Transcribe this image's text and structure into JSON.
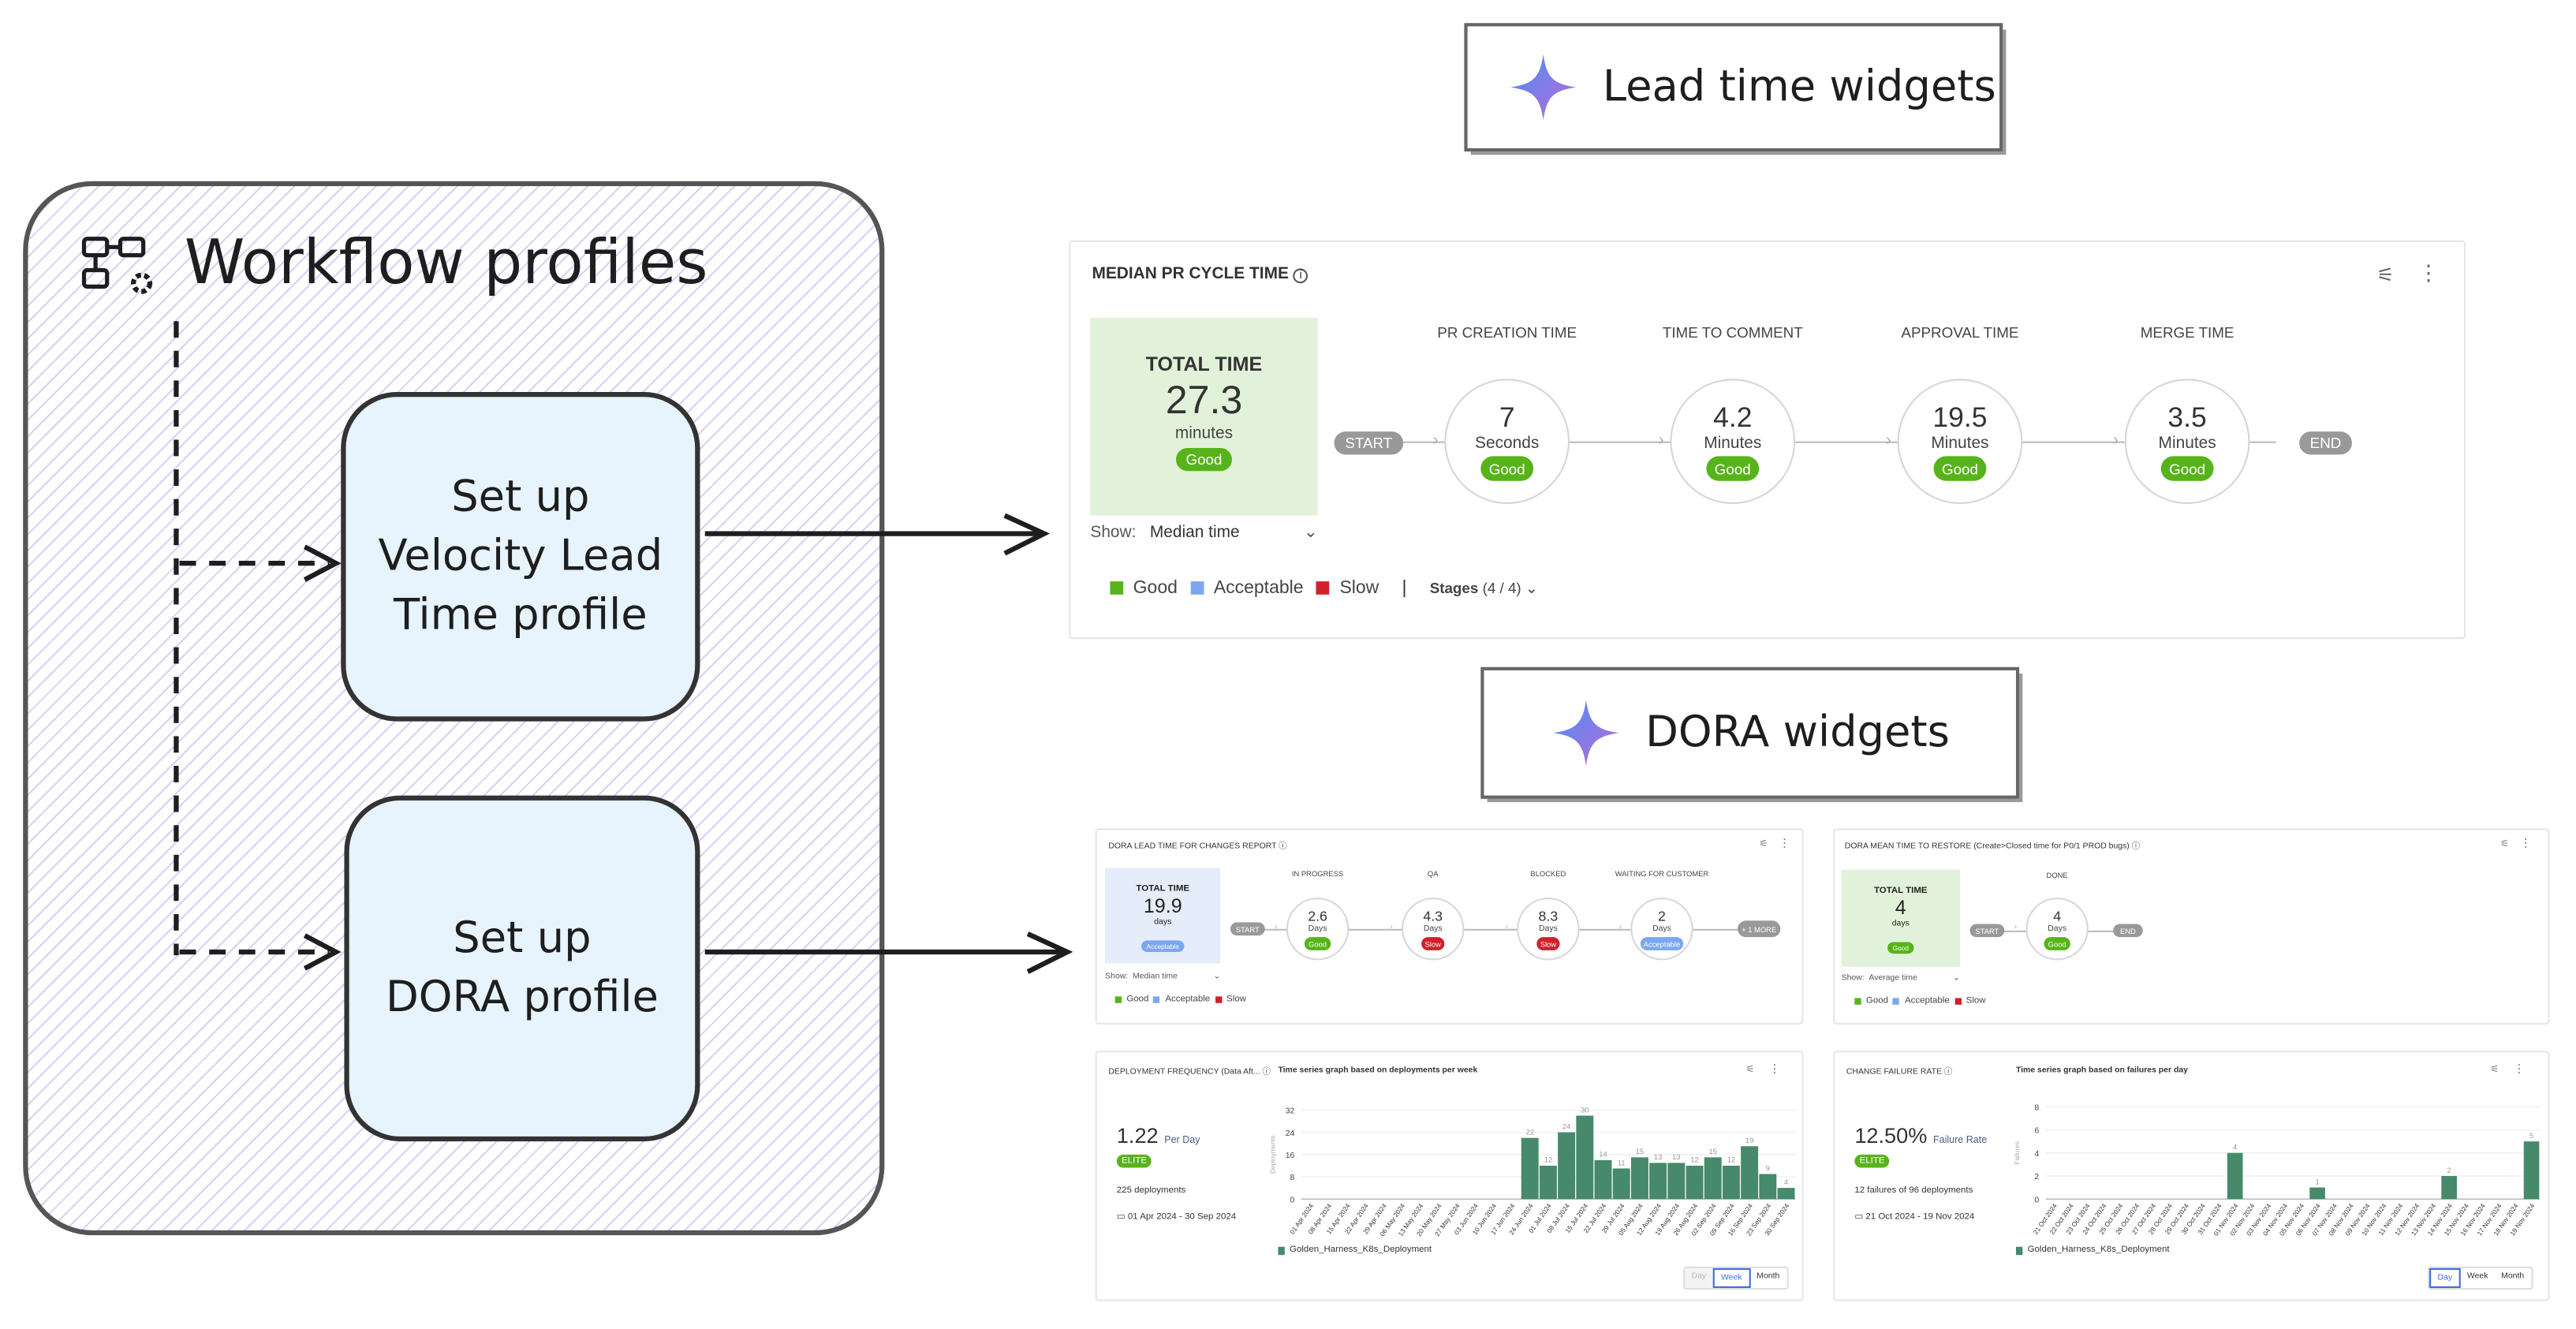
{
  "workflow": {
    "title": "Workflow profiles",
    "icon": "workflow-settings-icon",
    "boxes": [
      {
        "lines": [
          "Set up",
          "Velocity Lead",
          "Time profile"
        ]
      },
      {
        "lines": [
          "Set up",
          "DORA profile"
        ]
      }
    ]
  },
  "labels": {
    "lead": "Lead time widgets",
    "dora": "DORA widgets",
    "icon": "sparkle-icon"
  },
  "pr": {
    "title": "MEDIAN PR CYCLE TIME",
    "total_label": "TOTAL TIME",
    "total_value": "27.3",
    "total_unit": "minutes",
    "total_badge": "Good",
    "start": "START",
    "end": "END",
    "show_label": "Show:",
    "show_value": "Median time",
    "stages": [
      {
        "name": "PR CREATION TIME",
        "value": "7",
        "unit": "Seconds",
        "badge": "Good"
      },
      {
        "name": "TIME TO COMMENT",
        "value": "4.2",
        "unit": "Minutes",
        "badge": "Good"
      },
      {
        "name": "APPROVAL TIME",
        "value": "19.5",
        "unit": "Minutes",
        "badge": "Good"
      },
      {
        "name": "MERGE TIME",
        "value": "3.5",
        "unit": "Minutes",
        "badge": "Good"
      }
    ],
    "legend": [
      "Good",
      "Acceptable",
      "Slow"
    ],
    "stages_label": "Stages",
    "stages_count": "(4 / 4)"
  },
  "dlt": {
    "title": "DORA LEAD TIME FOR CHANGES REPORT",
    "total_label": "TOTAL TIME",
    "total_value": "19.9",
    "total_unit": "days",
    "total_badge": "Acceptable",
    "start": "START",
    "more": "+ 1 MORE",
    "show_label": "Show:",
    "show_value": "Median time",
    "stages": [
      {
        "name": "IN PROGRESS",
        "value": "2.6",
        "unit": "Days",
        "badge": "Good"
      },
      {
        "name": "QA",
        "value": "4.3",
        "unit": "Days",
        "badge": "Slow"
      },
      {
        "name": "BLOCKED",
        "value": "8.3",
        "unit": "Days",
        "badge": "Slow"
      },
      {
        "name": "WAITING FOR CUSTOMER",
        "value": "2",
        "unit": "Days",
        "badge": "Acceptable"
      }
    ],
    "legend": [
      "Good",
      "Acceptable",
      "Slow"
    ]
  },
  "mttr": {
    "title": "DORA MEAN TIME TO RESTORE (Create>Closed time for P0/1 PROD bugs)",
    "total_label": "TOTAL TIME",
    "total_value": "4",
    "total_unit": "days",
    "total_badge": "Good",
    "start": "START",
    "end": "END",
    "show_label": "Show:",
    "show_value": "Average time",
    "stages": [
      {
        "name": "DONE",
        "value": "4",
        "unit": "Days",
        "badge": "Good"
      }
    ],
    "legend": [
      "Good",
      "Acceptable",
      "Slow"
    ]
  },
  "df": {
    "title": "DEPLOYMENT FREQUENCY (Data Aft...",
    "subtitle": "Time series graph based on deployments per week",
    "value": "1.22",
    "unit": "Per Day",
    "badge": "ELITE",
    "count": "225 deployments",
    "range": "01 Apr 2024 - 30 Sep 2024",
    "toggle": [
      "Day",
      "Week",
      "Month"
    ],
    "active": "Week"
  },
  "cfr": {
    "title": "CHANGE FAILURE RATE",
    "subtitle": "Time series graph based on failures per day",
    "value": "12.50%",
    "unit": "Failure Rate",
    "badge": "ELITE",
    "count": "12 failures of 96 deployments",
    "range": "21 Oct 2024 - 19 Nov 2024",
    "toggle": [
      "Day",
      "Week",
      "Month"
    ],
    "active": "Day"
  },
  "colors": {
    "good": "#57b31a",
    "acceptable": "#7ba7f0",
    "slow": "#d0202a",
    "bar": "#468a6b",
    "accent": "#3b6fe0"
  },
  "chart_data": [
    {
      "type": "bar",
      "ylabel": "Deployments",
      "ylim": [
        0,
        32
      ],
      "yticks": [
        0,
        8,
        16,
        24,
        32
      ],
      "grid": true,
      "legend": "bottom-left",
      "series": [
        {
          "name": "Golden_Harness_K8s_Deployment"
        }
      ],
      "categories": [
        "01 Apr 2024",
        "08 Apr 2024",
        "15 Apr 2024",
        "22 Apr 2024",
        "29 Apr 2024",
        "06 May 2024",
        "13 May 2024",
        "20 May 2024",
        "27 May 2024",
        "03 Jun 2024",
        "10 Jun 2024",
        "17 Jun 2024",
        "24 Jun 2024",
        "01 Jul 2024",
        "08 Jul 2024",
        "15 Jul 2024",
        "22 Jul 2024",
        "29 Jul 2024",
        "05 Aug 2024",
        "12 Aug 2024",
        "19 Aug 2024",
        "26 Aug 2024",
        "02 Sep 2024",
        "09 Sep 2024",
        "16 Sep 2024",
        "23 Sep 2024",
        "30 Sep 2024"
      ],
      "values": [
        0,
        0,
        0,
        0,
        0,
        0,
        0,
        0,
        0,
        0,
        0,
        0,
        22,
        12,
        24,
        30,
        14,
        11,
        15,
        13,
        13,
        12,
        15,
        12,
        19,
        9,
        4
      ]
    },
    {
      "type": "bar",
      "ylabel": "Failures",
      "ylim": [
        0,
        8
      ],
      "yticks": [
        0,
        2,
        4,
        6,
        8
      ],
      "grid": true,
      "legend": "bottom-left",
      "series": [
        {
          "name": "Golden_Harness_K8s_Deployment"
        }
      ],
      "categories": [
        "21 Oct 2024",
        "22 Oct 2024",
        "23 Oct 2024",
        "24 Oct 2024",
        "25 Oct 2024",
        "26 Oct 2024",
        "27 Oct 2024",
        "28 Oct 2024",
        "29 Oct 2024",
        "30 Oct 2024",
        "31 Oct 2024",
        "01 Nov 2024",
        "02 Nov 2024",
        "03 Nov 2024",
        "04 Nov 2024",
        "05 Nov 2024",
        "06 Nov 2024",
        "07 Nov 2024",
        "08 Nov 2024",
        "09 Nov 2024",
        "10 Nov 2024",
        "11 Nov 2024",
        "12 Nov 2024",
        "13 Nov 2024",
        "14 Nov 2024",
        "15 Nov 2024",
        "16 Nov 2024",
        "17 Nov 2024",
        "18 Nov 2024",
        "19 Nov 2024"
      ],
      "values": [
        0,
        0,
        0,
        0,
        0,
        0,
        0,
        0,
        0,
        0,
        0,
        4,
        0,
        0,
        0,
        0,
        1,
        0,
        0,
        0,
        0,
        0,
        0,
        0,
        2,
        0,
        0,
        0,
        0,
        5
      ]
    }
  ]
}
